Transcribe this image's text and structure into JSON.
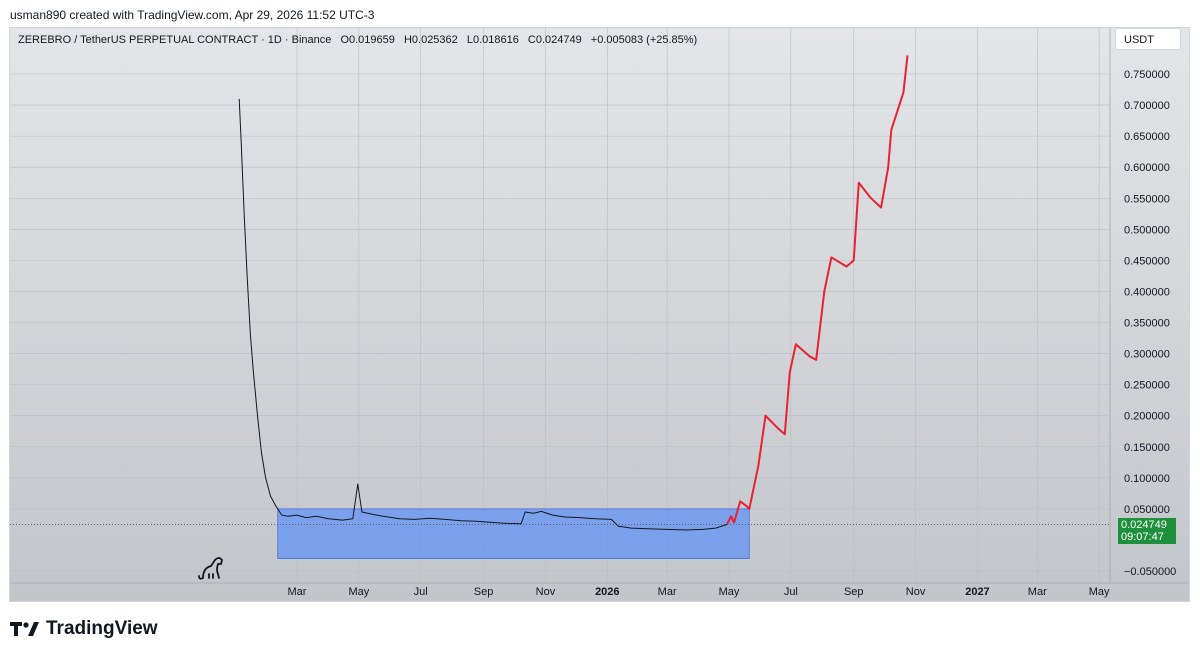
{
  "credit": "usman890 created with TradingView.com, Apr 29, 2026 11:52 UTC-3",
  "symbol": {
    "name": "ZEREBRO / TetherUS PERPETUAL CONTRACT · 1D · Binance",
    "open": "O0.019659",
    "high": "H0.025362",
    "low": "L0.018616",
    "close": "C0.024749",
    "change": "+0.005083 (+25.85%)"
  },
  "currency": "USDT",
  "price_label": {
    "value": "0.024749",
    "countdown": "09:07:47"
  },
  "brand": "TradingView",
  "colors": {
    "price_line": "#131722",
    "projection": "#e8232f",
    "range_box": "#5b8ff9",
    "price_box": "#1e8f3a",
    "background_top": "#e4e5e8",
    "background_bottom": "#c2c5ca"
  },
  "chart_data": {
    "type": "line",
    "x_axis": {
      "ticks": [
        {
          "label": "Mar",
          "date": "2025-03-01"
        },
        {
          "label": "May",
          "date": "2025-05-01"
        },
        {
          "label": "Jul",
          "date": "2025-07-01"
        },
        {
          "label": "Sep",
          "date": "2025-09-01"
        },
        {
          "label": "Nov",
          "date": "2025-11-01"
        },
        {
          "label": "2026",
          "date": "2026-01-01",
          "bold": true
        },
        {
          "label": "Mar",
          "date": "2026-03-01"
        },
        {
          "label": "May",
          "date": "2026-05-01"
        },
        {
          "label": "Jul",
          "date": "2026-07-01"
        },
        {
          "label": "Sep",
          "date": "2026-09-01"
        },
        {
          "label": "Nov",
          "date": "2026-11-01"
        },
        {
          "label": "2027",
          "date": "2027-01-01",
          "bold": true
        },
        {
          "label": "Mar",
          "date": "2027-03-01"
        },
        {
          "label": "May",
          "date": "2027-05-01"
        }
      ]
    },
    "y_axis": {
      "ticks": [
        "0.750000",
        "0.700000",
        "0.650000",
        "0.600000",
        "0.550000",
        "0.500000",
        "0.450000",
        "0.400000",
        "0.350000",
        "0.300000",
        "0.250000",
        "0.200000",
        "0.150000",
        "0.100000",
        "0.050000",
        "−0.050000"
      ],
      "tick_values": [
        0.75,
        0.7,
        0.65,
        0.6,
        0.55,
        0.5,
        0.45,
        0.4,
        0.35,
        0.3,
        0.25,
        0.2,
        0.15,
        0.1,
        0.05,
        -0.05
      ],
      "range": [
        -0.08,
        0.85
      ]
    },
    "series": [
      {
        "role": "price",
        "points": [
          [
            "2025-01-03",
            0.71
          ],
          [
            "2025-01-05",
            0.64
          ],
          [
            "2025-01-08",
            0.52
          ],
          [
            "2025-01-11",
            0.42
          ],
          [
            "2025-01-14",
            0.33
          ],
          [
            "2025-01-17",
            0.27
          ],
          [
            "2025-01-21",
            0.2
          ],
          [
            "2025-01-25",
            0.14
          ],
          [
            "2025-01-29",
            0.1
          ],
          [
            "2025-02-03",
            0.07
          ],
          [
            "2025-02-08",
            0.055
          ],
          [
            "2025-02-14",
            0.04
          ],
          [
            "2025-02-20",
            0.038
          ],
          [
            "2025-03-01",
            0.04
          ],
          [
            "2025-03-10",
            0.036
          ],
          [
            "2025-03-20",
            0.038
          ],
          [
            "2025-04-01",
            0.034
          ],
          [
            "2025-04-15",
            0.032
          ],
          [
            "2025-04-25",
            0.034
          ],
          [
            "2025-04-30",
            0.09
          ],
          [
            "2025-05-04",
            0.045
          ],
          [
            "2025-05-12",
            0.042
          ],
          [
            "2025-05-25",
            0.038
          ],
          [
            "2025-06-10",
            0.034
          ],
          [
            "2025-06-25",
            0.033
          ],
          [
            "2025-07-10",
            0.035
          ],
          [
            "2025-07-25",
            0.033
          ],
          [
            "2025-08-10",
            0.031
          ],
          [
            "2025-08-25",
            0.03
          ],
          [
            "2025-09-10",
            0.028
          ],
          [
            "2025-09-22",
            0.027
          ],
          [
            "2025-10-08",
            0.026
          ],
          [
            "2025-10-12",
            0.045
          ],
          [
            "2025-10-20",
            0.043
          ],
          [
            "2025-10-28",
            0.046
          ],
          [
            "2025-11-08",
            0.04
          ],
          [
            "2025-11-20",
            0.037
          ],
          [
            "2025-12-05",
            0.036
          ],
          [
            "2025-12-20",
            0.034
          ],
          [
            "2026-01-05",
            0.033
          ],
          [
            "2026-01-12",
            0.022
          ],
          [
            "2026-01-25",
            0.019
          ],
          [
            "2026-02-10",
            0.018
          ],
          [
            "2026-03-01",
            0.017
          ],
          [
            "2026-03-20",
            0.016
          ],
          [
            "2026-04-05",
            0.017
          ],
          [
            "2026-04-18",
            0.019
          ],
          [
            "2026-04-29",
            0.025
          ]
        ]
      },
      {
        "role": "projection",
        "points": [
          [
            "2026-04-29",
            0.025
          ],
          [
            "2026-05-03",
            0.038
          ],
          [
            "2026-05-06",
            0.028
          ],
          [
            "2026-05-12",
            0.062
          ],
          [
            "2026-05-18",
            0.055
          ],
          [
            "2026-05-21",
            0.05
          ],
          [
            "2026-05-30",
            0.12
          ],
          [
            "2026-06-06",
            0.2
          ],
          [
            "2026-06-18",
            0.18
          ],
          [
            "2026-06-25",
            0.17
          ],
          [
            "2026-06-30",
            0.27
          ],
          [
            "2026-07-06",
            0.315
          ],
          [
            "2026-07-20",
            0.295
          ],
          [
            "2026-07-26",
            0.29
          ],
          [
            "2026-08-03",
            0.4
          ],
          [
            "2026-08-10",
            0.455
          ],
          [
            "2026-08-25",
            0.44
          ],
          [
            "2026-09-01",
            0.45
          ],
          [
            "2026-09-06",
            0.575
          ],
          [
            "2026-09-18",
            0.55
          ],
          [
            "2026-09-28",
            0.535
          ],
          [
            "2026-10-05",
            0.6
          ],
          [
            "2026-10-08",
            0.66
          ],
          [
            "2026-10-20",
            0.72
          ],
          [
            "2026-10-24",
            0.78
          ]
        ]
      }
    ],
    "range_box": {
      "x_start": "2025-02-10",
      "x_end": "2026-05-21",
      "y_low": -0.03,
      "y_high": 0.05
    },
    "last_price": 0.024749
  }
}
